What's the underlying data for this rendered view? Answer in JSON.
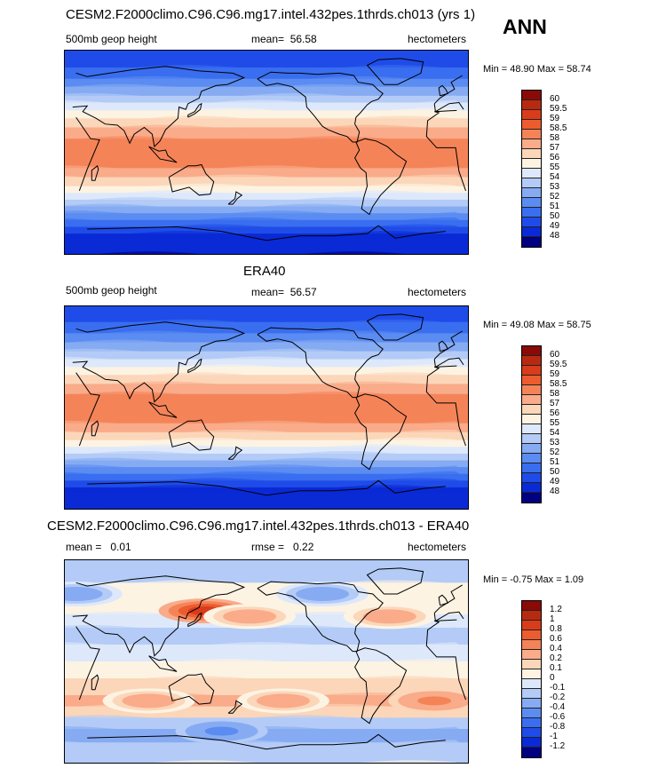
{
  "season": "ANN",
  "chart_data": [
    {
      "type": "heatmap",
      "title": "CESM2.F2000climo.C96.C96.mg17.intel.432pes.1thrds.ch013 (yrs 1)",
      "left_label": "500mb geop height",
      "mean_label": "mean=",
      "mean_value": "56.58",
      "units": "hectometers",
      "minmax": "Min =  48.90 Max =  58.74",
      "min": 48.9,
      "max": 58.74,
      "levels": [
        "48",
        "49",
        "50",
        "51",
        "52",
        "53",
        "54",
        "55",
        "56",
        "57",
        "58",
        "58.5",
        "59",
        "59.5",
        "60"
      ],
      "colors": [
        "#000080",
        "#0a2ad6",
        "#1f4ce8",
        "#3a6ef0",
        "#5b8cf2",
        "#86abf3",
        "#b3cbf6",
        "#dde8fb",
        "#fdf3e3",
        "#fcd6b9",
        "#f9ab8a",
        "#f48458",
        "#ec5c2e",
        "#d93c1a",
        "#b82a10",
        "#8a0a08"
      ],
      "bands": [
        [
          90,
          50
        ],
        [
          75,
          51
        ],
        [
          65,
          52
        ],
        [
          58,
          53
        ],
        [
          50,
          54
        ],
        [
          44,
          55
        ],
        [
          37,
          56
        ],
        [
          30,
          57
        ],
        [
          22,
          58
        ],
        [
          12,
          58.5
        ],
        [
          -4,
          58.5
        ],
        [
          -14,
          58
        ],
        [
          -22,
          57
        ],
        [
          -30,
          56
        ],
        [
          -36,
          55
        ],
        [
          -42,
          54
        ],
        [
          -48,
          53
        ],
        [
          -54,
          52
        ],
        [
          -60,
          51
        ],
        [
          -66,
          50
        ],
        [
          -72,
          49
        ],
        [
          -90,
          48
        ]
      ]
    },
    {
      "type": "heatmap",
      "title": "ERA40",
      "left_label": "500mb geop height",
      "mean_label": "mean=",
      "mean_value": "56.57",
      "units": "hectometers",
      "minmax": "Min =  49.08 Max =  58.75",
      "min": 49.08,
      "max": 58.75,
      "levels": [
        "48",
        "49",
        "50",
        "51",
        "52",
        "53",
        "54",
        "55",
        "56",
        "57",
        "58",
        "58.5",
        "59",
        "59.5",
        "60"
      ],
      "colors": [
        "#000080",
        "#0a2ad6",
        "#1f4ce8",
        "#3a6ef0",
        "#5b8cf2",
        "#86abf3",
        "#b3cbf6",
        "#dde8fb",
        "#fdf3e3",
        "#fcd6b9",
        "#f9ab8a",
        "#f48458",
        "#ec5c2e",
        "#d93c1a",
        "#b82a10",
        "#8a0a08"
      ],
      "bands": [
        [
          90,
          50
        ],
        [
          76,
          51
        ],
        [
          66,
          52
        ],
        [
          58,
          53
        ],
        [
          50,
          54
        ],
        [
          43,
          55
        ],
        [
          36,
          56
        ],
        [
          29,
          57
        ],
        [
          21,
          58
        ],
        [
          12,
          58.5
        ],
        [
          -4,
          58.5
        ],
        [
          -14,
          58
        ],
        [
          -22,
          57
        ],
        [
          -29,
          56
        ],
        [
          -35,
          55
        ],
        [
          -41,
          54
        ],
        [
          -47,
          53
        ],
        [
          -53,
          52
        ],
        [
          -59,
          51
        ],
        [
          -65,
          50
        ],
        [
          -71,
          49
        ],
        [
          -90,
          48.5
        ]
      ]
    },
    {
      "type": "heatmap",
      "title": "CESM2.F2000climo.C96.C96.mg17.intel.432pes.1thrds.ch013 - ERA40",
      "left_label": "mean =",
      "mean_value": "0.01",
      "mean_label": "rmse =",
      "rmse_value": "0.22",
      "units": "hectometers",
      "minmax": "Min =  -0.75 Max =   1.09",
      "min": -0.75,
      "max": 1.09,
      "levels": [
        "-1.2",
        "-1",
        "-0.8",
        "-0.6",
        "-0.4",
        "-0.2",
        "-0.1",
        "0",
        "0.1",
        "0.2",
        "0.4",
        "0.6",
        "0.8",
        "1",
        "1.2"
      ],
      "colors": [
        "#000080",
        "#0a2ad6",
        "#1f4ce8",
        "#3a6ef0",
        "#5b8cf2",
        "#86abf3",
        "#b3cbf6",
        "#dde8fb",
        "#fdf3e3",
        "#fcd6b9",
        "#f9ab8a",
        "#f48458",
        "#ec5c2e",
        "#d93c1a",
        "#b82a10",
        "#8a0a08"
      ],
      "bands": [
        [
          90,
          -0.15
        ],
        [
          70,
          0.05
        ],
        [
          55,
          0.05
        ],
        [
          42,
          -0.05
        ],
        [
          30,
          -0.15
        ],
        [
          15,
          -0.05
        ],
        [
          0,
          0.05
        ],
        [
          -15,
          0.15
        ],
        [
          -30,
          0.25
        ],
        [
          -40,
          0.15
        ],
        [
          -50,
          -0.15
        ],
        [
          -60,
          -0.3
        ],
        [
          -72,
          -0.15
        ],
        [
          -90,
          0.05
        ]
      ],
      "anomalies": [
        {
          "lon": 145,
          "lat": 45,
          "value": 0.9
        },
        {
          "lon": 185,
          "lat": 40,
          "value": 0.4
        },
        {
          "lon": 310,
          "lat": 40,
          "value": 0.4
        },
        {
          "lon": 95,
          "lat": -35,
          "value": 0.4
        },
        {
          "lon": 350,
          "lat": -35,
          "value": 0.5
        },
        {
          "lon": 215,
          "lat": -35,
          "value": 0.3
        },
        {
          "lon": 160,
          "lat": -62,
          "value": -0.5
        },
        {
          "lon": 30,
          "lat": 60,
          "value": -0.3
        },
        {
          "lon": 250,
          "lat": 60,
          "value": -0.3
        }
      ]
    }
  ]
}
